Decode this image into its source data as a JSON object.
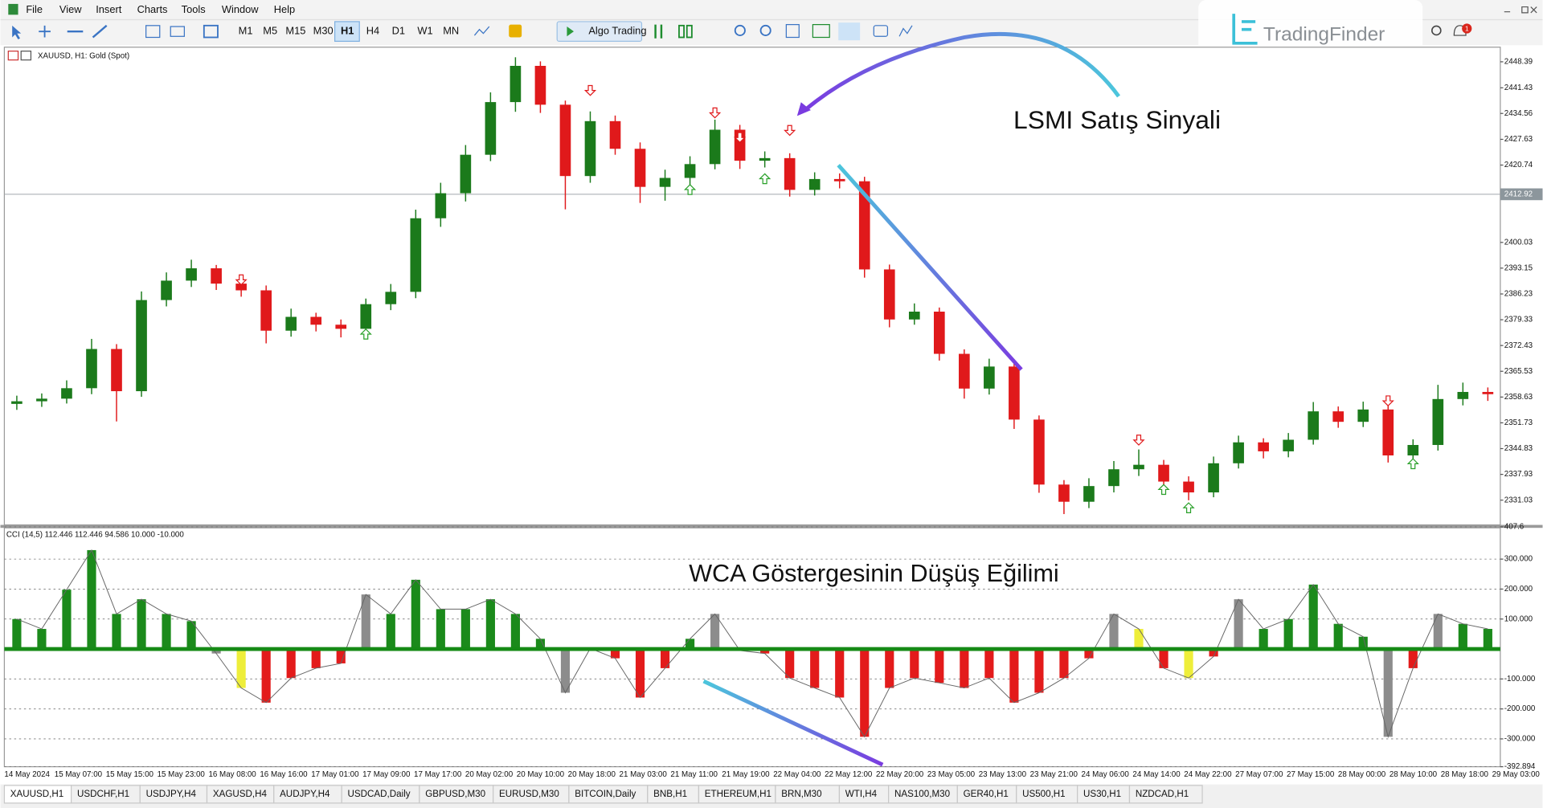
{
  "menu": [
    "File",
    "View",
    "Insert",
    "Charts",
    "Tools",
    "Window",
    "Help"
  ],
  "toolbar": {
    "timeframes": [
      {
        "label": "M1",
        "active": false
      },
      {
        "label": "M5",
        "active": false
      },
      {
        "label": "M15",
        "active": false
      },
      {
        "label": "M30",
        "active": false
      },
      {
        "label": "H1",
        "active": true
      },
      {
        "label": "H4",
        "active": false
      },
      {
        "label": "D1",
        "active": false
      },
      {
        "label": "W1",
        "active": false
      },
      {
        "label": "MN",
        "active": false
      }
    ],
    "algo_button": "Algo Trading",
    "notifications": 1
  },
  "brand": "TradingFinder",
  "chart_data": [
    {
      "type": "candlestick",
      "title": "XAUUSD, H1:  Gold (Spot)",
      "annotation": "LSMI Satış Sinyali",
      "up_color": "#1b7a1b",
      "down_color": "#e0191b",
      "open": [
        2356.8,
        2357.5,
        2358.2,
        2361.0,
        2371.5,
        2360.2,
        2384.6,
        2389.8,
        2393.1,
        2389.0,
        2387.2,
        2376.4,
        2380.1,
        2378.0,
        2376.9,
        2383.5,
        2386.8,
        2406.5,
        2413.2,
        2423.5,
        2437.6,
        2447.3,
        2436.9,
        2417.8,
        2432.5,
        2425.1,
        2414.9,
        2417.3,
        2421.0,
        2430.2,
        2421.9,
        2422.6,
        2414.1,
        2417.0,
        2416.4,
        2392.8,
        2379.4,
        2381.5,
        2370.2,
        2360.9,
        2366.8,
        2352.6,
        2335.2,
        2330.6,
        2334.8,
        2339.3,
        2340.5,
        2336.0,
        2333.1,
        2340.9,
        2346.5,
        2344.1,
        2347.2,
        2354.8,
        2352.0,
        2355.3,
        2343.0,
        2345.8,
        2358.1,
        2360.0
      ],
      "high": [
        2359.0,
        2359.6,
        2363.1,
        2374.2,
        2372.8,
        2386.9,
        2392.0,
        2395.4,
        2394.0,
        2390.6,
        2388.5,
        2382.3,
        2381.2,
        2379.4,
        2385.0,
        2388.9,
        2408.8,
        2416.0,
        2426.1,
        2440.2,
        2449.6,
        2448.5,
        2438.0,
        2435.1,
        2434.0,
        2426.8,
        2419.5,
        2423.1,
        2432.9,
        2431.5,
        2424.4,
        2423.9,
        2418.8,
        2418.5,
        2417.6,
        2394.1,
        2383.7,
        2382.6,
        2371.4,
        2368.9,
        2368.0,
        2353.7,
        2336.4,
        2336.9,
        2341.5,
        2344.6,
        2341.8,
        2337.4,
        2342.7,
        2348.3,
        2347.6,
        2349.0,
        2357.3,
        2356.1,
        2357.4,
        2356.5,
        2347.3,
        2361.9,
        2362.5,
        2361.2
      ],
      "low": [
        2355.2,
        2356.0,
        2356.9,
        2359.4,
        2352.1,
        2358.7,
        2382.9,
        2388.1,
        2387.3,
        2385.5,
        2373.0,
        2374.8,
        2376.2,
        2374.6,
        2375.3,
        2381.9,
        2385.1,
        2404.2,
        2411.0,
        2421.8,
        2435.0,
        2434.7,
        2408.9,
        2416.0,
        2423.5,
        2410.6,
        2411.2,
        2415.4,
        2419.6,
        2419.7,
        2420.1,
        2412.3,
        2412.6,
        2414.5,
        2390.6,
        2377.3,
        2378.0,
        2368.4,
        2358.2,
        2359.3,
        2350.1,
        2333.0,
        2327.3,
        2328.9,
        2333.1,
        2337.5,
        2334.2,
        2331.0,
        2331.8,
        2339.5,
        2342.2,
        2342.5,
        2345.9,
        2350.4,
        2350.6,
        2341.1,
        2341.4,
        2344.3,
        2356.4,
        2357.6
      ],
      "close": [
        2357.5,
        2358.2,
        2361.0,
        2371.5,
        2360.2,
        2384.6,
        2389.8,
        2393.1,
        2389.0,
        2387.2,
        2376.4,
        2380.1,
        2378.0,
        2376.9,
        2383.5,
        2386.8,
        2406.5,
        2413.2,
        2423.5,
        2437.6,
        2447.3,
        2436.9,
        2417.8,
        2432.5,
        2425.1,
        2414.9,
        2417.3,
        2421.0,
        2430.2,
        2421.9,
        2422.6,
        2414.1,
        2417.0,
        2416.4,
        2392.8,
        2379.4,
        2381.5,
        2370.2,
        2360.9,
        2366.8,
        2352.6,
        2335.2,
        2330.6,
        2334.8,
        2339.3,
        2340.5,
        2336.0,
        2333.1,
        2340.9,
        2346.5,
        2344.1,
        2347.2,
        2354.8,
        2352.0,
        2355.3,
        2343.0,
        2345.8,
        2358.1,
        2360.0,
        2359.4
      ],
      "sell_signals": [
        null,
        null,
        null,
        null,
        null,
        null,
        null,
        null,
        null,
        2388.7,
        null,
        null,
        null,
        null,
        null,
        null,
        null,
        null,
        null,
        null,
        null,
        null,
        null,
        2439.4,
        null,
        null,
        null,
        null,
        2433.4,
        2426.8,
        null,
        2428.7,
        null,
        null,
        null,
        null,
        null,
        null,
        null,
        null,
        null,
        null,
        null,
        null,
        null,
        2345.8,
        null,
        null,
        null,
        null,
        null,
        null,
        null,
        null,
        null,
        2356.3,
        null,
        null,
        null,
        null
      ],
      "buy_signals": [
        null,
        null,
        null,
        null,
        null,
        null,
        null,
        null,
        null,
        null,
        null,
        null,
        null,
        null,
        2376.8,
        null,
        null,
        null,
        null,
        null,
        null,
        null,
        null,
        null,
        null,
        null,
        null,
        2415.5,
        null,
        null,
        2418.4,
        null,
        null,
        null,
        null,
        null,
        null,
        null,
        null,
        null,
        null,
        null,
        null,
        null,
        null,
        null,
        2335.2,
        2330.3,
        null,
        null,
        null,
        null,
        null,
        null,
        null,
        null,
        2342.1,
        null,
        null,
        null
      ],
      "current_price": 2412.92,
      "ylim": [
        2324.4,
        2452.3
      ],
      "yticks": [
        2448.39,
        2441.43,
        2434.56,
        2427.63,
        2420.74,
        2400.03,
        2393.15,
        2386.23,
        2379.33,
        2372.43,
        2365.53,
        2358.63,
        2351.73,
        2344.83,
        2337.93,
        2331.03
      ]
    },
    {
      "type": "bar",
      "title": "CCI (14,5) 112.446 112.446 94.586 10.000 -10.000",
      "annotation": "WCA Göstergesinin Düşüş Eğilimi",
      "values": [
        100,
        67,
        198,
        330,
        117,
        166,
        117,
        93,
        -15,
        -130,
        -179,
        -97,
        -64,
        -48,
        182,
        117,
        231,
        133,
        133,
        166,
        117,
        34,
        -146,
        2,
        -31,
        -162,
        -64,
        34,
        117,
        -5,
        -15,
        -97,
        -130,
        -162,
        -293,
        -130,
        -97,
        -113,
        -130,
        -97,
        -179,
        -146,
        -97,
        -31,
        117,
        67,
        -64,
        -97,
        -25,
        166,
        67,
        100,
        215,
        84,
        41,
        -293,
        -64,
        117,
        84,
        67
      ],
      "colors": [
        "#1b8a1b",
        "#1b8a1b",
        "#1b8a1b",
        "#1b8a1b",
        "#1b8a1b",
        "#1b8a1b",
        "#1b8a1b",
        "#1b8a1b",
        "#8c8c8c",
        "#eeee3a",
        "#e31b1b",
        "#e31b1b",
        "#e31b1b",
        "#e31b1b",
        "#8c8c8c",
        "#1b8a1b",
        "#1b8a1b",
        "#1b8a1b",
        "#1b8a1b",
        "#1b8a1b",
        "#1b8a1b",
        "#1b8a1b",
        "#8c8c8c",
        "#1b8a1b",
        "#e31b1b",
        "#e31b1b",
        "#e31b1b",
        "#1b8a1b",
        "#8c8c8c",
        "#e31b1b",
        "#e31b1b",
        "#e31b1b",
        "#e31b1b",
        "#e31b1b",
        "#e31b1b",
        "#e31b1b",
        "#e31b1b",
        "#e31b1b",
        "#e31b1b",
        "#e31b1b",
        "#e31b1b",
        "#e31b1b",
        "#e31b1b",
        "#e31b1b",
        "#8c8c8c",
        "#eeee3a",
        "#e31b1b",
        "#eeee3a",
        "#e31b1b",
        "#8c8c8c",
        "#1b8a1b",
        "#1b8a1b",
        "#1b8a1b",
        "#1b8a1b",
        "#1b8a1b",
        "#8c8c8c",
        "#e31b1b",
        "#8c8c8c",
        "#1b8a1b",
        "#1b8a1b"
      ],
      "baseline": 0,
      "baseline_color": "#168a16",
      "ylim": [
        -392.894,
        407.6
      ],
      "yticks": [
        407.6,
        {
          "value": 300,
          "label": "300.000"
        },
        {
          "value": 200,
          "label": "200.000"
        },
        {
          "value": 100,
          "label": "100.000"
        },
        {
          "value": -100,
          "label": "-100.000"
        },
        {
          "value": -200,
          "label": "-200.000"
        },
        {
          "value": -300,
          "label": "-300.000"
        },
        -392.894
      ]
    }
  ],
  "time_axis": [
    "14 May 2024",
    "15 May 07:00",
    "15 May 15:00",
    "15 May 23:00",
    "16 May 08:00",
    "16 May 16:00",
    "17 May 01:00",
    "17 May 09:00",
    "17 May 17:00",
    "20 May 02:00",
    "20 May 10:00",
    "20 May 18:00",
    "21 May 03:00",
    "21 May 11:00",
    "21 May 19:00",
    "22 May 04:00",
    "22 May 12:00",
    "22 May 20:00",
    "23 May 05:00",
    "23 May 13:00",
    "23 May 21:00",
    "24 May 06:00",
    "24 May 14:00",
    "24 May 22:00",
    "27 May 07:00",
    "27 May 15:00",
    "28 May 00:00",
    "28 May 10:00",
    "28 May 18:00",
    "29 May 03:00"
  ],
  "tabs": [
    {
      "label": "XAUUSD,H1",
      "active": true
    },
    {
      "label": "USDCHF,H1",
      "active": false
    },
    {
      "label": "USDJPY,H4",
      "active": false
    },
    {
      "label": "XAGUSD,H4",
      "active": false
    },
    {
      "label": "AUDJPY,H4",
      "active": false
    },
    {
      "label": "USDCAD,Daily",
      "active": false
    },
    {
      "label": "GBPUSD,M30",
      "active": false
    },
    {
      "label": "EURUSD,M30",
      "active": false
    },
    {
      "label": "BITCOIN,Daily",
      "active": false
    },
    {
      "label": "BNB,H1",
      "active": false
    },
    {
      "label": "ETHEREUM,H1",
      "active": false
    },
    {
      "label": "BRN,M30",
      "active": false
    },
    {
      "label": "WTI,H4",
      "active": false
    },
    {
      "label": "NAS100,M30",
      "active": false
    },
    {
      "label": "GER40,H1",
      "active": false
    },
    {
      "label": "US500,H1",
      "active": false
    },
    {
      "label": "US30,H1",
      "active": false
    },
    {
      "label": "NZDCAD,H1",
      "active": false
    }
  ]
}
